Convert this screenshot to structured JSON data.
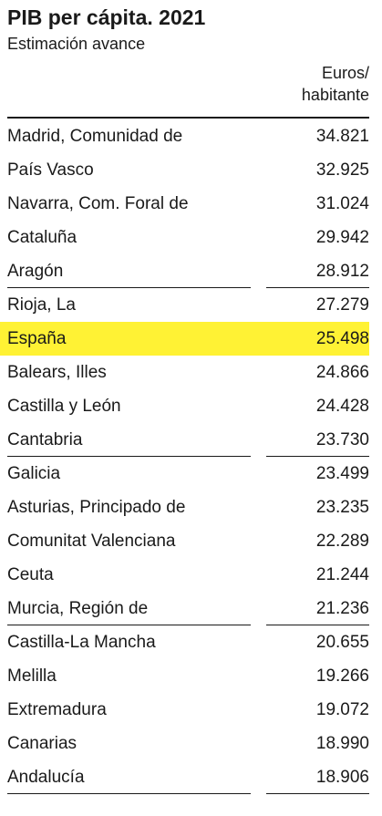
{
  "header": {
    "title": "PIB per cápita. 2021",
    "subtitle": "Estimación avance"
  },
  "table": {
    "column_header": [
      "Euros/",
      "habitante"
    ],
    "highlight_color": "#fff234",
    "rows": [
      {
        "name": "Madrid, Comunidad de",
        "value": "34.821"
      },
      {
        "name": "País Vasco",
        "value": "32.925"
      },
      {
        "name": "Navarra, Com. Foral de",
        "value": "31.024"
      },
      {
        "name": "Cataluña",
        "value": "29.942"
      },
      {
        "name": "Aragón",
        "value": "28.912"
      },
      {
        "name": "Rioja, La",
        "value": "27.279"
      },
      {
        "name": "España",
        "value": "25.498",
        "highlight": true
      },
      {
        "name": "Balears, Illes",
        "value": "24.866"
      },
      {
        "name": "Castilla y León",
        "value": "24.428"
      },
      {
        "name": "Cantabria",
        "value": "23.730"
      },
      {
        "name": "Galicia",
        "value": "23.499"
      },
      {
        "name": "Asturias, Principado de",
        "value": "23.235"
      },
      {
        "name": "Comunitat Valenciana",
        "value": "22.289"
      },
      {
        "name": "Ceuta",
        "value": "21.244"
      },
      {
        "name": "Murcia, Región de",
        "value": "21.236"
      },
      {
        "name": "Castilla-La Mancha",
        "value": "20.655"
      },
      {
        "name": "Melilla",
        "value": "19.266"
      },
      {
        "name": "Extremadura",
        "value": "19.072"
      },
      {
        "name": "Canarias",
        "value": "18.990"
      },
      {
        "name": "Andalucía",
        "value": "18.906"
      }
    ]
  }
}
